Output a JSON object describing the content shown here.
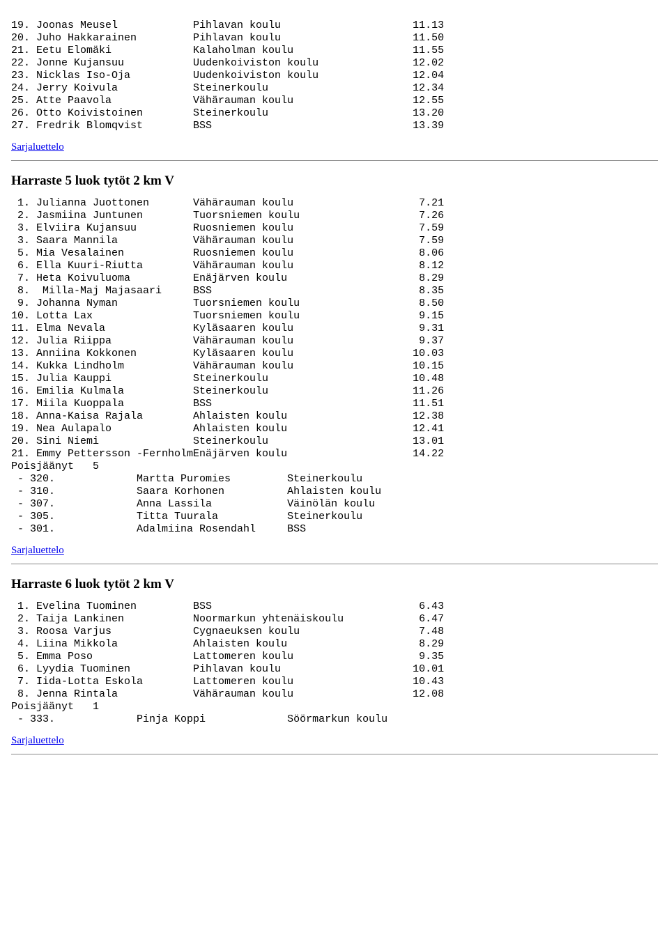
{
  "section1": {
    "rows": [
      {
        "pos": "19.",
        "name": "Joonas Meusel",
        "school": "Pihlavan koulu",
        "time": "11.13"
      },
      {
        "pos": "20.",
        "name": "Juho Hakkarainen",
        "school": "Pihlavan koulu",
        "time": "11.50"
      },
      {
        "pos": "21.",
        "name": "Eetu Elomäki",
        "school": "Kalaholman koulu",
        "time": "11.55"
      },
      {
        "pos": "22.",
        "name": "Jonne Kujansuu",
        "school": "Uudenkoiviston koulu",
        "time": "12.02"
      },
      {
        "pos": "23.",
        "name": "Nicklas Iso-Oja",
        "school": "Uudenkoiviston koulu",
        "time": "12.04"
      },
      {
        "pos": "24.",
        "name": "Jerry Koivula",
        "school": "Steinerkoulu",
        "time": "12.34"
      },
      {
        "pos": "25.",
        "name": "Atte Paavola",
        "school": "Vähärauman koulu",
        "time": "12.55"
      },
      {
        "pos": "26.",
        "name": "Otto Koivistoinen",
        "school": "Steinerkoulu",
        "time": "13.20"
      },
      {
        "pos": "27.",
        "name": "Fredrik Blomqvist",
        "school": "BSS",
        "time": "13.39"
      }
    ],
    "link": "Sarjaluettelo"
  },
  "section2": {
    "title": "Harraste 5 luok tytöt 2 km V",
    "rows": [
      {
        "pos": " 1.",
        "name": "Julianna Juottonen",
        "school": "Vähärauman koulu",
        "time": "7.21"
      },
      {
        "pos": " 2.",
        "name": "Jasmiina Juntunen",
        "school": "Tuorsniemen koulu",
        "time": "7.26"
      },
      {
        "pos": " 3.",
        "name": "Elviira Kujansuu",
        "school": "Ruosniemen koulu",
        "time": "7.59"
      },
      {
        "pos": " 3.",
        "name": "Saara Mannila",
        "school": "Vähärauman koulu",
        "time": "7.59"
      },
      {
        "pos": " 5.",
        "name": "Mia Vesalainen",
        "school": "Ruosniemen koulu",
        "time": "8.06"
      },
      {
        "pos": " 6.",
        "name": "Ella Kuuri-Riutta",
        "school": "Vähärauman koulu",
        "time": "8.12"
      },
      {
        "pos": " 7.",
        "name": "Heta Koivuluoma",
        "school": "Enäjärven koulu",
        "time": "8.29"
      },
      {
        "pos": " 8.",
        "name": " Milla-Maj Majasaari",
        "school": "BSS",
        "time": "8.35"
      },
      {
        "pos": " 9.",
        "name": "Johanna Nyman",
        "school": "Tuorsniemen koulu",
        "time": "8.50"
      },
      {
        "pos": "10.",
        "name": "Lotta Lax",
        "school": "Tuorsniemen koulu",
        "time": "9.15"
      },
      {
        "pos": "11.",
        "name": "Elma Nevala",
        "school": "Kyläsaaren koulu",
        "time": "9.31"
      },
      {
        "pos": "12.",
        "name": "Julia Riippa",
        "school": "Vähärauman koulu",
        "time": "9.37"
      },
      {
        "pos": "13.",
        "name": "Anniina Kokkonen",
        "school": "Kyläsaaren koulu",
        "time": "10.03"
      },
      {
        "pos": "14.",
        "name": "Kukka Lindholm",
        "school": "Vähärauman koulu",
        "time": "10.15"
      },
      {
        "pos": "15.",
        "name": "Julia Kauppi",
        "school": "Steinerkoulu",
        "time": "10.48"
      },
      {
        "pos": "16.",
        "name": "Emilia Kulmala",
        "school": "Steinerkoulu",
        "time": "11.26"
      },
      {
        "pos": "17.",
        "name": "Miila Kuoppala",
        "school": "BSS",
        "time": "11.51"
      },
      {
        "pos": "18.",
        "name": "Anna-Kaisa Rajala",
        "school": "Ahlaisten koulu",
        "time": "12.38"
      },
      {
        "pos": "19.",
        "name": "Nea Aulapalo",
        "school": "Ahlaisten koulu",
        "time": "12.41"
      },
      {
        "pos": "20.",
        "name": "Sini Niemi",
        "school": "Steinerkoulu",
        "time": "13.01"
      },
      {
        "pos": "21.",
        "name": "Emmy Pettersson -Fernholm",
        "school": "Enäjärven koulu",
        "time": "14.22"
      }
    ],
    "absentHeader": "Poisjäänyt   5",
    "absent": [
      {
        "id": " - 320.",
        "name": "Martta Puromies",
        "school": "Steinerkoulu"
      },
      {
        "id": " - 310.",
        "name": "Saara Korhonen",
        "school": "Ahlaisten koulu"
      },
      {
        "id": " - 307.",
        "name": "Anna Lassila",
        "school": "Väinölän koulu"
      },
      {
        "id": " - 305.",
        "name": "Titta Tuurala",
        "school": "Steinerkoulu"
      },
      {
        "id": " - 301.",
        "name": "Adalmiina Rosendahl",
        "school": "BSS"
      }
    ],
    "link": "Sarjaluettelo"
  },
  "section3": {
    "title": "Harraste 6 luok tytöt 2 km V",
    "rows": [
      {
        "pos": " 1.",
        "name": "Evelina Tuominen",
        "school": "BSS",
        "time": "6.43"
      },
      {
        "pos": " 2.",
        "name": "Taija Lankinen",
        "school": "Noormarkun yhtenäiskoulu",
        "time": "6.47"
      },
      {
        "pos": " 3.",
        "name": "Roosa Varjus",
        "school": "Cygnaeuksen koulu",
        "time": "7.48"
      },
      {
        "pos": " 4.",
        "name": "Liina Mikkola",
        "school": "Ahlaisten koulu",
        "time": "8.29"
      },
      {
        "pos": " 5.",
        "name": "Emma Poso",
        "school": "Lattomeren koulu",
        "time": "9.35"
      },
      {
        "pos": " 6.",
        "name": "Lyydia Tuominen",
        "school": "Pihlavan koulu",
        "time": "10.01"
      },
      {
        "pos": " 7.",
        "name": "Iida-Lotta Eskola",
        "school": "Lattomeren koulu",
        "time": "10.43"
      },
      {
        "pos": " 8.",
        "name": "Jenna Rintala",
        "school": "Vähärauman koulu",
        "time": "12.08"
      }
    ],
    "absentHeader": "Poisjäänyt   1",
    "absent": [
      {
        "id": " - 333.",
        "name": "Pinja Koppi",
        "school": "Söörmarkun koulu"
      }
    ],
    "link": "Sarjaluettelo"
  },
  "layout": {
    "posWidth": 4,
    "nameWidth": 25,
    "schoolWidth": 34,
    "timeWidth": 6,
    "absIdWidth": 20,
    "absNameWidth": 24
  }
}
